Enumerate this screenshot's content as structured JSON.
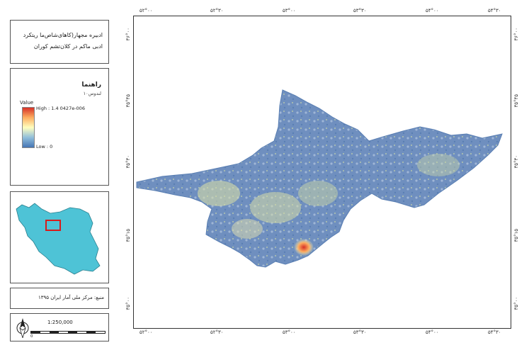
{
  "title": {
    "line1": "ادبیره مجهار(کاهای‌شا‌ص‌ما ریتکرد",
    "line2": "ادبی ماکم در کلان‌تشم کوران"
  },
  "legend": {
    "heading": "راهنما",
    "subtitle": "لندوس۱۰",
    "value_label": "Value",
    "high_label": "High : 1.4 0427e-006",
    "low_label": "Low : 0"
  },
  "credit": "منبع: مرکز ملی آمار ایران ۱۳۹۵",
  "scale": {
    "text": "1:250,000",
    "ticks": [
      "0",
      "",
      "",
      "",
      "",
      "",
      "",
      ""
    ]
  },
  "map": {
    "top_ticks": [
      "۵۲°۰۰",
      "۵۲°۳۰",
      "۵۳°۰۰",
      "۵۳°۳۰",
      "۵۴°۰۰",
      "۵۴°۳۰"
    ],
    "bottom_ticks": [
      "۵۲°۰۰",
      "۵۲°۳۰",
      "۵۳°۰۰",
      "۵۳°۳۰",
      "۵۴°۰۰",
      "۵۴°۳۰"
    ],
    "left_ticks": [
      "۳۶°۰۰",
      "۳۵°۴۵",
      "۳۵°۳۰",
      "۳۵°۱۵",
      "۳۵°۰۰"
    ],
    "right_ticks": [
      "۳۶°۰۰",
      "۳۵°۴۵",
      "۳۵°۳۰",
      "۳۵°۱۵",
      "۳۵°۰۰"
    ]
  },
  "colors": {
    "region_base": "#6f8fbf",
    "hotspot": "#d73027",
    "iran": "#4ec3d6",
    "inset_highlight": "#d81b1b"
  },
  "icons": {
    "north_arrow": "north-arrow-icon"
  }
}
